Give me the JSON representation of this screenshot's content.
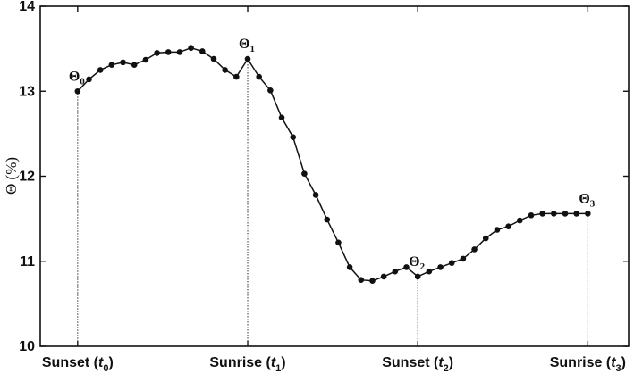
{
  "chart_data": {
    "type": "line",
    "title": "",
    "ylabel": "Θ (%)",
    "xlabel": "",
    "ylim": [
      10,
      14
    ],
    "yticks": [
      10,
      11,
      12,
      13,
      14
    ],
    "grid": false,
    "colors": {
      "line": "#111111",
      "marker": "#111111",
      "axes": "#111111"
    },
    "xticks": [
      {
        "x": 0,
        "label_prefix": "Sunset (",
        "var": "t",
        "sub": "0",
        "suffix": ")"
      },
      {
        "x": 10,
        "label_prefix": "Sunrise (",
        "var": "t",
        "sub": "1",
        "suffix": ")"
      },
      {
        "x": 20,
        "label_prefix": "Sunset (",
        "var": "t",
        "sub": "2",
        "suffix": ")"
      },
      {
        "x": 30,
        "label_prefix": "Sunrise (",
        "var": "t",
        "sub": "3",
        "suffix": ")"
      }
    ],
    "xlim": [
      -2.2,
      32.4
    ],
    "series": [
      {
        "x": [
          0,
          0.667,
          1.333,
          2,
          2.667,
          3.333,
          4,
          4.667,
          5.333,
          6,
          6.667,
          7.333,
          8,
          8.667,
          9.333,
          10,
          10.667,
          11.333,
          12,
          12.667,
          13.333,
          14,
          14.667,
          15.333,
          16,
          16.667,
          17.333,
          18,
          18.667,
          19.333,
          20,
          20.667,
          21.333,
          22,
          22.667,
          23.333,
          24,
          24.667,
          25.333,
          26,
          26.667,
          27.333,
          28,
          28.667,
          29.333,
          30
        ],
        "values": [
          13.0,
          13.14,
          13.25,
          13.31,
          13.34,
          13.31,
          13.37,
          13.45,
          13.46,
          13.46,
          13.51,
          13.47,
          13.38,
          13.25,
          13.17,
          13.38,
          13.17,
          13.01,
          12.69,
          12.46,
          12.03,
          11.78,
          11.49,
          11.22,
          10.93,
          10.78,
          10.77,
          10.82,
          10.88,
          10.93,
          10.82,
          10.88,
          10.93,
          10.98,
          11.03,
          11.14,
          11.27,
          11.37,
          11.41,
          11.48,
          11.54,
          11.56,
          11.56,
          11.56,
          11.56,
          11.56
        ]
      }
    ],
    "markers": [
      {
        "x": 0,
        "y": 13.0,
        "symbol": "Θ",
        "sub": "0"
      },
      {
        "x": 10,
        "y": 13.38,
        "symbol": "Θ",
        "sub": "1"
      },
      {
        "x": 20,
        "y": 10.82,
        "symbol": "Θ",
        "sub": "2"
      },
      {
        "x": 30,
        "y": 11.56,
        "symbol": "Θ",
        "sub": "3"
      }
    ]
  }
}
